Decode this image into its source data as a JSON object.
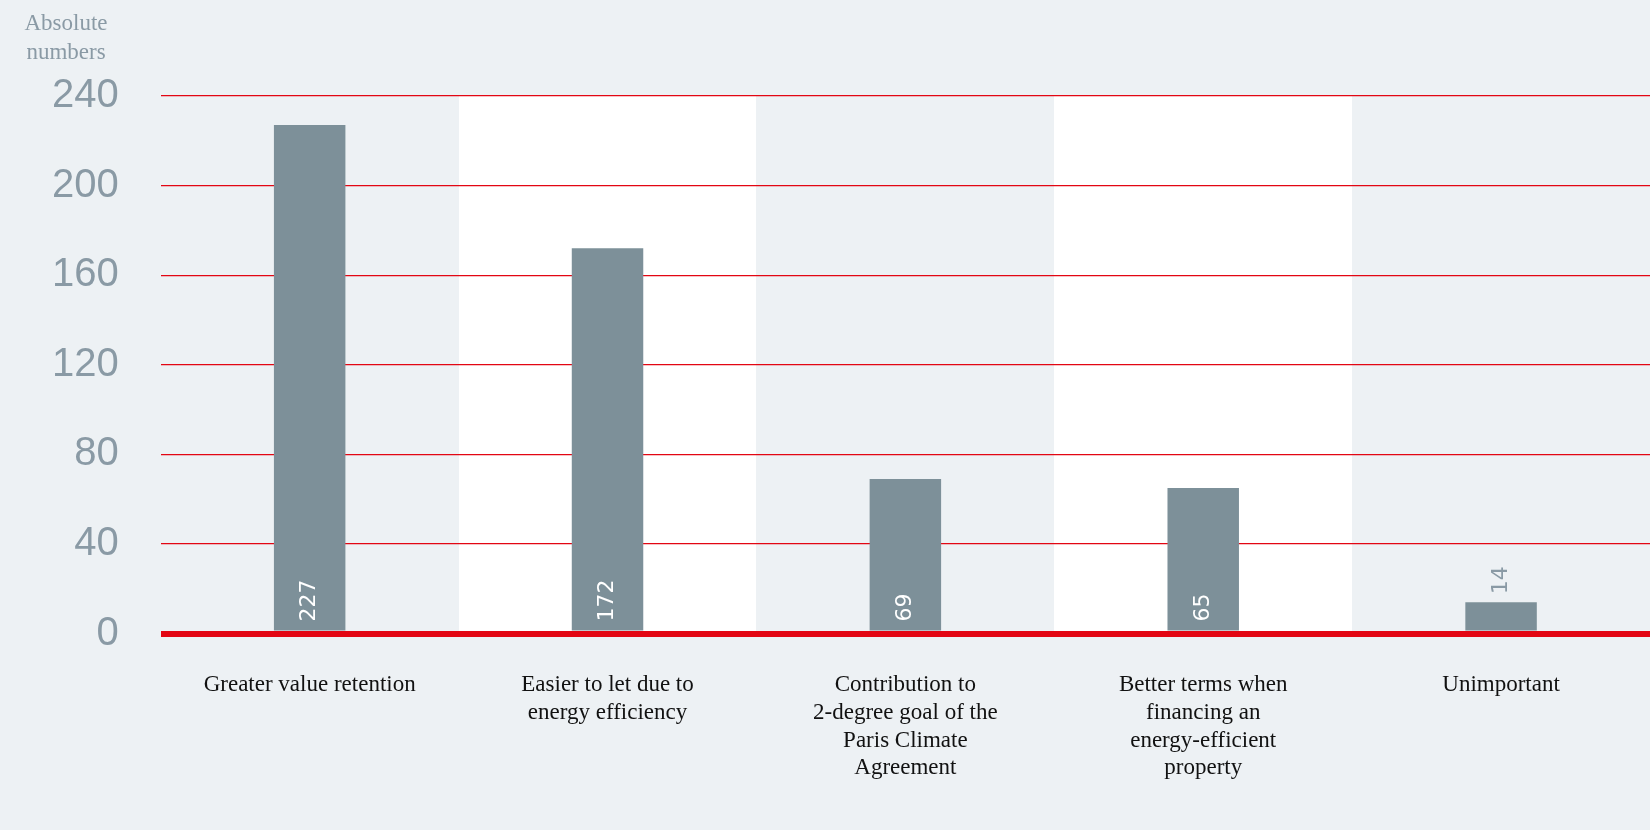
{
  "chart_data": {
    "type": "bar",
    "ylabel": "Absolute numbers",
    "categories": [
      "Greater value retention",
      "Easier to let due to energy efficiency",
      "Contribution to 2-degree goal of the Paris Climate Agreement",
      "Better terms when financing an energy-efficient property",
      "Unimportant"
    ],
    "values": [
      227,
      172,
      69,
      65,
      14
    ],
    "color": "#7d9099",
    "ylim": [
      0,
      240
    ],
    "yticks": [
      0,
      40,
      80,
      120,
      160,
      200,
      240
    ],
    "grid": "y",
    "legend": false,
    "data_labels": true
  }
}
